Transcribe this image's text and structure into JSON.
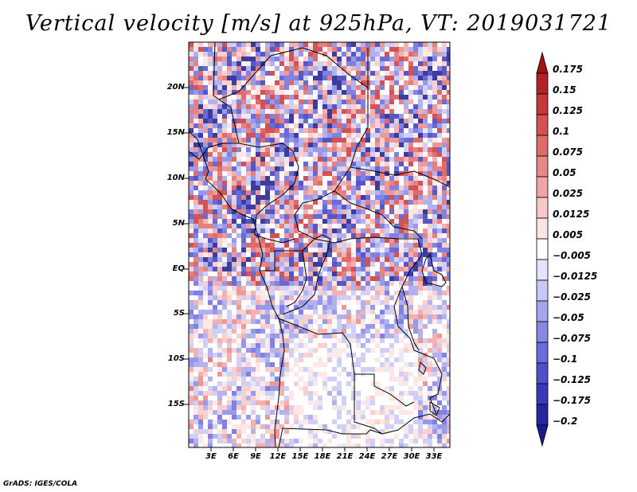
{
  "title": "Vertical velocity [m/s] at 925hPa, VT: 2019031721",
  "credit": "GrADS: IGES/COLA",
  "map": {
    "lat_ticks": [
      "20N",
      "15N",
      "10N",
      "5N",
      "EQ",
      "5S",
      "10S",
      "15S"
    ],
    "lon_ticks": [
      "3E",
      "6E",
      "9E",
      "12E",
      "15E",
      "18E",
      "21E",
      "24E",
      "27E",
      "30E",
      "33E"
    ],
    "field": "vertical velocity",
    "level": "925hPa",
    "valid_time": "2019031721"
  },
  "colorbar": {
    "labels": [
      "0.175",
      "0.15",
      "0.125",
      "0.1",
      "0.075",
      "0.05",
      "0.025",
      "0.0125",
      "0.005",
      "−0.005",
      "−0.0125",
      "−0.025",
      "−0.05",
      "−0.075",
      "−0.1",
      "−0.125",
      "−0.175",
      "−0.2"
    ],
    "colors": [
      "#a01418",
      "#b42024",
      "#c8363a",
      "#d85050",
      "#e06b6b",
      "#e98787",
      "#f2a3a3",
      "#f8c8c8",
      "#fde3e3",
      "#ffffff",
      "#e3e3fb",
      "#c8c8f5",
      "#a5a5ee",
      "#8787e6",
      "#6b6bdc",
      "#5050cc",
      "#3a3ab8",
      "#2626a0",
      "#1a1a8c"
    ]
  }
}
